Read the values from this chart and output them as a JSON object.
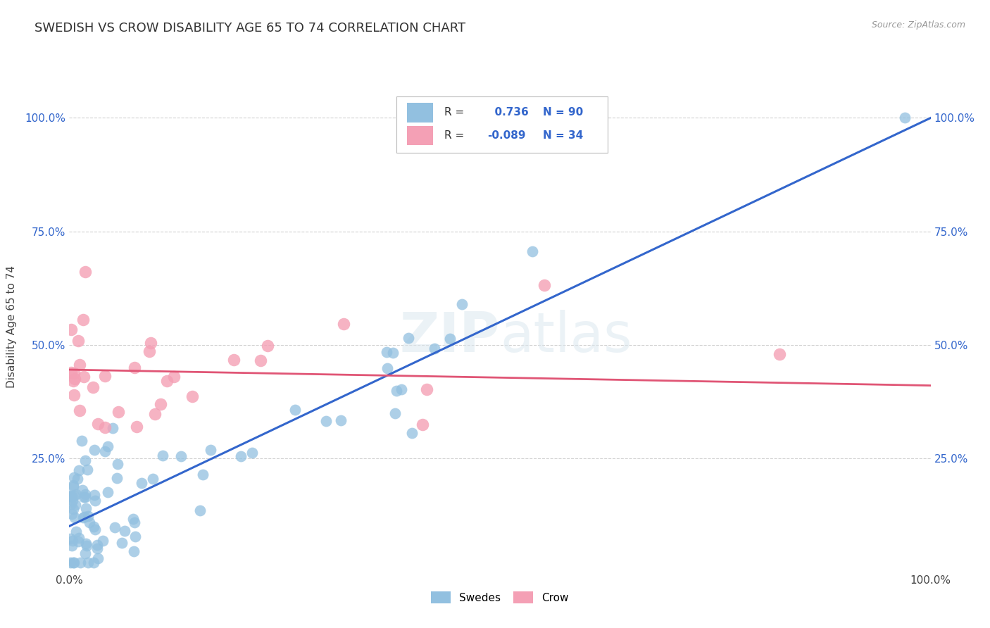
{
  "title": "SWEDISH VS CROW DISABILITY AGE 65 TO 74 CORRELATION CHART",
  "source": "Source: ZipAtlas.com",
  "ylabel": "Disability Age 65 to 74",
  "swedes_R": 0.736,
  "swedes_N": 90,
  "crow_R": -0.089,
  "crow_N": 34,
  "swedes_color": "#92c0e0",
  "crow_color": "#f4a0b5",
  "swedes_line_color": "#3366cc",
  "crow_line_color": "#e05575",
  "legend_label_swedes": "Swedes",
  "legend_label_crow": "Crow",
  "background_color": "#ffffff",
  "grid_color": "#cccccc",
  "xlim": [
    0.0,
    1.0
  ],
  "ylim": [
    0.0,
    1.08
  ],
  "x_ticks": [
    0.0,
    1.0
  ],
  "x_tick_labels": [
    "0.0%",
    "100.0%"
  ],
  "y_ticks": [
    0.25,
    0.5,
    0.75,
    1.0
  ],
  "y_tick_labels": [
    "25.0%",
    "50.0%",
    "75.0%",
    "100.0%"
  ],
  "swedes_line_x": [
    0.0,
    1.0
  ],
  "swedes_line_y": [
    0.1,
    1.0
  ],
  "crow_line_x": [
    0.0,
    1.0
  ],
  "crow_line_y": [
    0.445,
    0.41
  ]
}
